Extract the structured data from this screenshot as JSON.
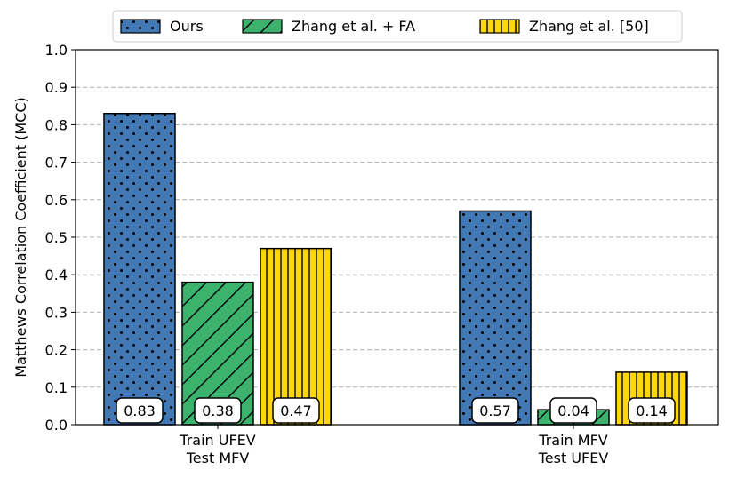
{
  "chart_data": {
    "type": "bar",
    "categories": [
      [
        "Train UFEV",
        "Test MFV"
      ],
      [
        "Train MFV",
        "Test UFEV"
      ]
    ],
    "series": [
      {
        "name": "Ours",
        "values": [
          0.83,
          0.57
        ],
        "labels": [
          "0.83",
          "0.57"
        ],
        "color": "#4278b4",
        "pattern": "dots"
      },
      {
        "name": "Zhang et al. + FA",
        "values": [
          0.38,
          0.04
        ],
        "labels": [
          "0.38",
          "0.04"
        ],
        "color": "#3cb26e",
        "pattern": "diagonal"
      },
      {
        "name": "Zhang et al. [50]",
        "values": [
          0.47,
          0.14
        ],
        "labels": [
          "0.47",
          "0.14"
        ],
        "color": "#fed80b",
        "pattern": "vertical"
      }
    ],
    "ylabel": "Matthews Correlation Coefficient (MCC)",
    "xlabel": "",
    "ylim": [
      0,
      1.0
    ],
    "yticks": [
      "0.0",
      "0.1",
      "0.2",
      "0.3",
      "0.4",
      "0.5",
      "0.6",
      "0.7",
      "0.8",
      "0.9",
      "1.0"
    ],
    "grid": "horizontal dashed",
    "legend_position": "top-center"
  }
}
